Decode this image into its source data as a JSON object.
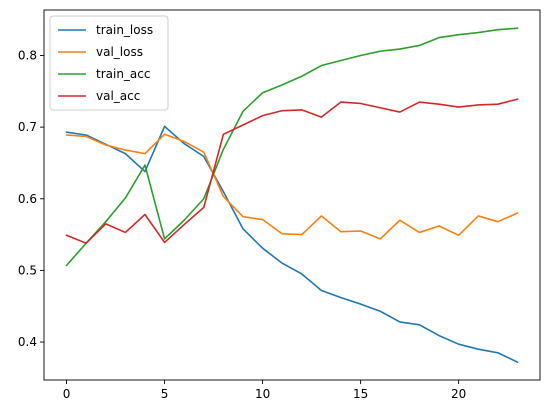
{
  "chart_data": {
    "type": "line",
    "title": "",
    "xlabel": "",
    "ylabel": "",
    "xlim": [
      -1.15,
      24.15
    ],
    "ylim": [
      0.347,
      0.8635
    ],
    "x_ticks": [
      0,
      5,
      10,
      15,
      20
    ],
    "y_ticks": [
      0.4,
      0.5,
      0.6,
      0.7,
      0.8
    ],
    "x_tick_labels": [
      "0",
      "5",
      "10",
      "15",
      "20"
    ],
    "y_tick_labels": [
      "0.4",
      "0.5",
      "0.6",
      "0.7",
      "0.8"
    ],
    "legend_position": "upper-left",
    "grid": false,
    "x": [
      0,
      1,
      2,
      3,
      4,
      5,
      6,
      7,
      8,
      9,
      10,
      11,
      12,
      13,
      14,
      15,
      16,
      17,
      18,
      19,
      20,
      21,
      22,
      23
    ],
    "series": [
      {
        "name": "train_loss",
        "color": "#1f77b4",
        "values": [
          0.693,
          0.689,
          0.676,
          0.663,
          0.638,
          0.701,
          0.677,
          0.659,
          0.61,
          0.558,
          0.531,
          0.51,
          0.495,
          0.472,
          0.462,
          0.453,
          0.443,
          0.428,
          0.424,
          0.409,
          0.397,
          0.39,
          0.385,
          0.372
        ]
      },
      {
        "name": "val_loss",
        "color": "#ff7f0e",
        "values": [
          0.689,
          0.687,
          0.675,
          0.668,
          0.663,
          0.69,
          0.68,
          0.665,
          0.603,
          0.575,
          0.571,
          0.551,
          0.55,
          0.576,
          0.554,
          0.555,
          0.544,
          0.57,
          0.553,
          0.562,
          0.549,
          0.576,
          0.568,
          0.58
        ]
      },
      {
        "name": "train_acc",
        "color": "#2ca02c",
        "values": [
          0.507,
          0.538,
          0.568,
          0.601,
          0.647,
          0.544,
          0.57,
          0.6,
          0.669,
          0.722,
          0.748,
          0.759,
          0.771,
          0.786,
          0.793,
          0.8,
          0.806,
          0.809,
          0.814,
          0.825,
          0.829,
          0.832,
          0.836,
          0.838
        ]
      },
      {
        "name": "val_acc",
        "color": "#d62728",
        "values": [
          0.549,
          0.538,
          0.565,
          0.553,
          0.578,
          0.539,
          0.564,
          0.588,
          0.69,
          0.703,
          0.716,
          0.723,
          0.724,
          0.714,
          0.735,
          0.733,
          0.727,
          0.721,
          0.735,
          0.732,
          0.728,
          0.731,
          0.732,
          0.739
        ]
      }
    ]
  }
}
